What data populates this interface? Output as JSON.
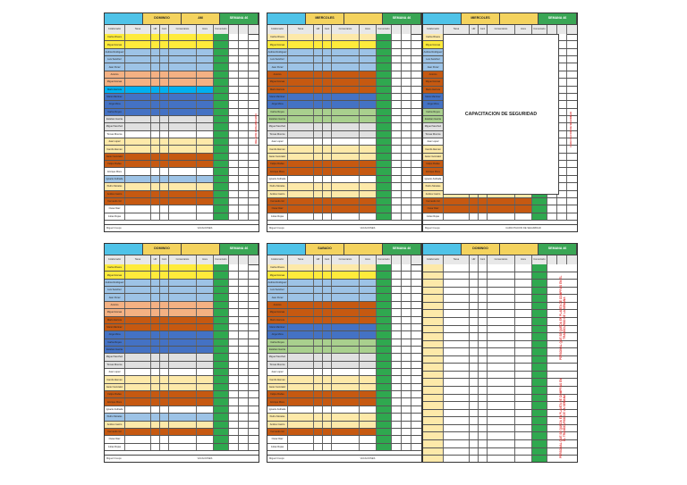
{
  "panel_tl": {
    "h1": "DOMINGO",
    "h2": "AM",
    "h3": "",
    "h4": "SEMANA 46",
    "footer_left": "Miguel Crespo",
    "footer_mid": "VACACIONES",
    "side": "RELEVO ORGANIZADO"
  },
  "panel_tm": {
    "h1": "MIERCOLES",
    "h2": "",
    "h3": "",
    "h4": "SEMANA 46",
    "footer_left": "Miguel Crespo",
    "footer_mid": "VACACIONES"
  },
  "panel_tr": {
    "h1": "MIERCOLES",
    "h2": "",
    "h3": "",
    "h4": "SEMANA 46",
    "center": "CAPACITACION DE SEGURIDAD",
    "footer_mid": "CAPACITACION DE SEGURIDAD",
    "footer_left": "Miguel Crespo",
    "footer_right": "VACACIONES",
    "side": "CAPACITACION DE SEGURIDAD"
  },
  "panel_bl": {
    "h1": "DOMINGO",
    "h2": "",
    "h3": "",
    "h4": "SEMANA 46",
    "footer_left": "Miguel Crespo",
    "footer_mid": "VACACIONES"
  },
  "panel_bm": {
    "h1": "SABADO",
    "h2": "",
    "h3": "",
    "h4": "SEMANA 46",
    "footer_left": "Miguel Crespo",
    "footer_mid": "VACACIONES"
  },
  "panel_br": {
    "h1": "DOMINGO",
    "h2": "",
    "h3": "",
    "h4": "SEMANA 46",
    "side1": "PERSONAL QUE SE QUEDA EN PLANTA DE COMPRAS EN EL TRANSCURSO DE LA SEMANA",
    "side2": "PERSONAL QUE SE QUEDA EN PLANTA DE COMPRAS EN EL TRANSCURSO DE LA SEMANA"
  },
  "cols": [
    "Colaborador",
    "Tarea",
    "HR",
    "Cant",
    "Comentarios",
    "Hora",
    "Comentario"
  ],
  "row_labels": [
    "Carlos Rivera",
    "Miguel Arenas",
    "Andrés Rodriguez",
    "Luis Sanchez",
    "Juan Perez",
    "Antonio",
    "Miguel Arenas",
    "Mario Herrera",
    "Mario Martinez",
    "Jorge Mora",
    "Carlos Reyes",
    "Esteban Garcia",
    "Miguel Sanchez",
    "Tomas Riveros",
    "Juan Lopez",
    "Camilo Aleman",
    "Javier Gonzalez",
    "Felipe Rodas",
    "Enrique Mora",
    "Ignacio Andrade",
    "Pedro Morales",
    "Andres Castro",
    "Fernando Gil",
    "Oscar Diaz",
    "Julian Rojas"
  ],
  "colors": {
    "yellow": "#ffeb3b",
    "lightyellow": "#fde9a9",
    "lightblue": "#9dc3e6",
    "blue": "#4472c4",
    "cyan": "#00b0f0",
    "orange": "#c65911",
    "lightorange": "#f4b183",
    "green": "#2fa84f",
    "gray": "#e0e0e0",
    "lightgreen": "#a9d08e",
    "tan": "#f8cbad",
    "white": "#ffffff"
  }
}
